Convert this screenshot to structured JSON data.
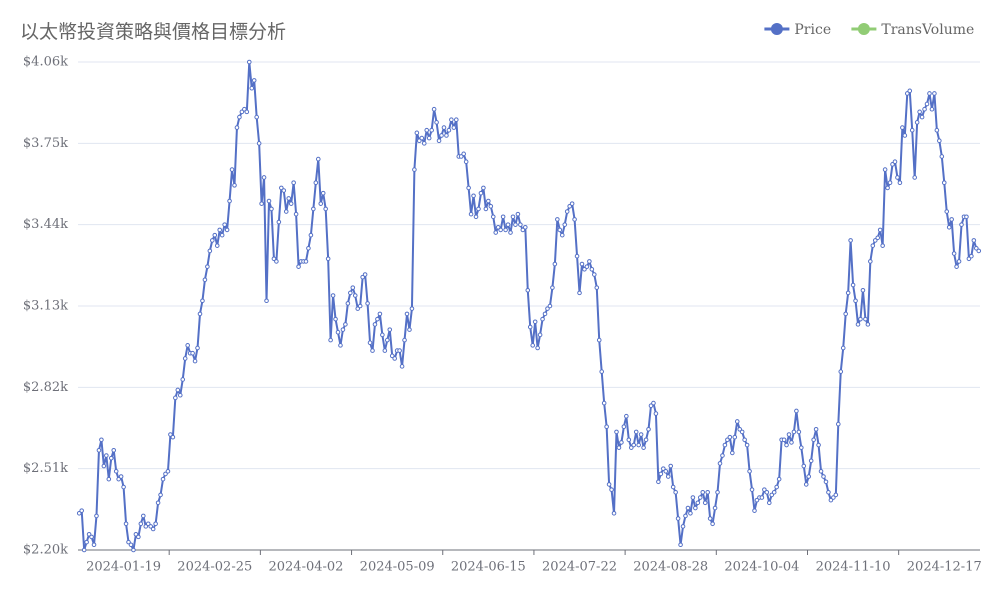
{
  "chart_data": {
    "type": "line",
    "title": "以太幣投資策略與價格目標分析",
    "legend_position": "top-right",
    "grid": true,
    "ylim": [
      2200,
      4060
    ],
    "yticks": [
      {
        "value": 2200,
        "label": "$2.20k"
      },
      {
        "value": 2510,
        "label": "$2.51k"
      },
      {
        "value": 2820,
        "label": "$2.82k"
      },
      {
        "value": 3130,
        "label": "$3.13k"
      },
      {
        "value": 3440,
        "label": "$3.44k"
      },
      {
        "value": 3750,
        "label": "$3.75k"
      },
      {
        "value": 4060,
        "label": "$4.06k"
      }
    ],
    "x": [
      "2024-01-01",
      "2024-01-02",
      "2024-01-03",
      "2024-01-04",
      "2024-01-05",
      "2024-01-06",
      "2024-01-07",
      "2024-01-08",
      "2024-01-09",
      "2024-01-10",
      "2024-01-11",
      "2024-01-12",
      "2024-01-13",
      "2024-01-14",
      "2024-01-15",
      "2024-01-16",
      "2024-01-17",
      "2024-01-18",
      "2024-01-19",
      "2024-01-20",
      "2024-01-21",
      "2024-01-22",
      "2024-01-23",
      "2024-01-24",
      "2024-01-25",
      "2024-01-26",
      "2024-01-27",
      "2024-01-28",
      "2024-01-29",
      "2024-01-30",
      "2024-01-31",
      "2024-02-01",
      "2024-02-02",
      "2024-02-03",
      "2024-02-04",
      "2024-02-05",
      "2024-02-06",
      "2024-02-07",
      "2024-02-08",
      "2024-02-09",
      "2024-02-10",
      "2024-02-11",
      "2024-02-12",
      "2024-02-13",
      "2024-02-14",
      "2024-02-15",
      "2024-02-16",
      "2024-02-17",
      "2024-02-18",
      "2024-02-19",
      "2024-02-20",
      "2024-02-21",
      "2024-02-22",
      "2024-02-23",
      "2024-02-24",
      "2024-02-25",
      "2024-02-26",
      "2024-02-27",
      "2024-02-28",
      "2024-02-29",
      "2024-03-01",
      "2024-03-02",
      "2024-03-03",
      "2024-03-04",
      "2024-03-05",
      "2024-03-06",
      "2024-03-07",
      "2024-03-08",
      "2024-03-09",
      "2024-03-10",
      "2024-03-11",
      "2024-03-12",
      "2024-03-13",
      "2024-03-14",
      "2024-03-15",
      "2024-03-16",
      "2024-03-17",
      "2024-03-18",
      "2024-03-19",
      "2024-03-20",
      "2024-03-21",
      "2024-03-22",
      "2024-03-23",
      "2024-03-24",
      "2024-03-25",
      "2024-03-26",
      "2024-03-27",
      "2024-03-28",
      "2024-03-29",
      "2024-03-30",
      "2024-03-31",
      "2024-04-01",
      "2024-04-02",
      "2024-04-03",
      "2024-04-04",
      "2024-04-05",
      "2024-04-06",
      "2024-04-07",
      "2024-04-08",
      "2024-04-09",
      "2024-04-10",
      "2024-04-11",
      "2024-04-12",
      "2024-04-13",
      "2024-04-14",
      "2024-04-15",
      "2024-04-16",
      "2024-04-17",
      "2024-04-18",
      "2024-04-19",
      "2024-04-20",
      "2024-04-21",
      "2024-04-22",
      "2024-04-23",
      "2024-04-24",
      "2024-04-25",
      "2024-04-26",
      "2024-04-27",
      "2024-04-28",
      "2024-04-29",
      "2024-04-30",
      "2024-05-01",
      "2024-05-02",
      "2024-05-03",
      "2024-05-04",
      "2024-05-05",
      "2024-05-06",
      "2024-05-07",
      "2024-05-08",
      "2024-05-09",
      "2024-05-10",
      "2024-05-11",
      "2024-05-12",
      "2024-05-13",
      "2024-05-14",
      "2024-05-15",
      "2024-05-16",
      "2024-05-17",
      "2024-05-18",
      "2024-05-19",
      "2024-05-20",
      "2024-05-21",
      "2024-05-22",
      "2024-05-23",
      "2024-05-24",
      "2024-05-25",
      "2024-05-26",
      "2024-05-27",
      "2024-05-28",
      "2024-05-29",
      "2024-05-30",
      "2024-05-31",
      "2024-06-01",
      "2024-06-02",
      "2024-06-03",
      "2024-06-04",
      "2024-06-05",
      "2024-06-06",
      "2024-06-07",
      "2024-06-08",
      "2024-06-09",
      "2024-06-10",
      "2024-06-11",
      "2024-06-12",
      "2024-06-13",
      "2024-06-14",
      "2024-06-15",
      "2024-06-16",
      "2024-06-17",
      "2024-06-18",
      "2024-06-19",
      "2024-06-20",
      "2024-06-21",
      "2024-06-22",
      "2024-06-23",
      "2024-06-24",
      "2024-06-25",
      "2024-06-26",
      "2024-06-27",
      "2024-06-28",
      "2024-06-29",
      "2024-06-30",
      "2024-07-01",
      "2024-07-02",
      "2024-07-03",
      "2024-07-04",
      "2024-07-05",
      "2024-07-06",
      "2024-07-07",
      "2024-07-08",
      "2024-07-09",
      "2024-07-10",
      "2024-07-11",
      "2024-07-12",
      "2024-07-13",
      "2024-07-14",
      "2024-07-15",
      "2024-07-16",
      "2024-07-17",
      "2024-07-18",
      "2024-07-19",
      "2024-07-20",
      "2024-07-21",
      "2024-07-22",
      "2024-07-23",
      "2024-07-24",
      "2024-07-25",
      "2024-07-26",
      "2024-07-27",
      "2024-07-28",
      "2024-07-29",
      "2024-07-30",
      "2024-07-31",
      "2024-08-01",
      "2024-08-02",
      "2024-08-03",
      "2024-08-04",
      "2024-08-05",
      "2024-08-06",
      "2024-08-07",
      "2024-08-08",
      "2024-08-09",
      "2024-08-10",
      "2024-08-11",
      "2024-08-12",
      "2024-08-13",
      "2024-08-14",
      "2024-08-15",
      "2024-08-16",
      "2024-08-17",
      "2024-08-18",
      "2024-08-19",
      "2024-08-20",
      "2024-08-21",
      "2024-08-22",
      "2024-08-23",
      "2024-08-24",
      "2024-08-25",
      "2024-08-26",
      "2024-08-27",
      "2024-08-28",
      "2024-08-29",
      "2024-08-30",
      "2024-08-31",
      "2024-09-01",
      "2024-09-02",
      "2024-09-03",
      "2024-09-04",
      "2024-09-05",
      "2024-09-06",
      "2024-09-07",
      "2024-09-08",
      "2024-09-09",
      "2024-09-10",
      "2024-09-11",
      "2024-09-12",
      "2024-09-13",
      "2024-09-14",
      "2024-09-15",
      "2024-09-16",
      "2024-09-17",
      "2024-09-18",
      "2024-09-19",
      "2024-09-20",
      "2024-09-21",
      "2024-09-22",
      "2024-09-23",
      "2024-09-24",
      "2024-09-25",
      "2024-09-26",
      "2024-09-27",
      "2024-09-28",
      "2024-09-29",
      "2024-09-30",
      "2024-10-01",
      "2024-10-02",
      "2024-10-03",
      "2024-10-04",
      "2024-10-05",
      "2024-10-06",
      "2024-10-07",
      "2024-10-08",
      "2024-10-09",
      "2024-10-10",
      "2024-10-11",
      "2024-10-12",
      "2024-10-13",
      "2024-10-14",
      "2024-10-15",
      "2024-10-16",
      "2024-10-17",
      "2024-10-18",
      "2024-10-19",
      "2024-10-20",
      "2024-10-21",
      "2024-10-22",
      "2024-10-23",
      "2024-10-24",
      "2024-10-25",
      "2024-10-26",
      "2024-10-27",
      "2024-10-28",
      "2024-10-29",
      "2024-10-30",
      "2024-10-31",
      "2024-11-01",
      "2024-11-02",
      "2024-11-03",
      "2024-11-04",
      "2024-11-05",
      "2024-11-06",
      "2024-11-07",
      "2024-11-08",
      "2024-11-09",
      "2024-11-10",
      "2024-11-11",
      "2024-11-12",
      "2024-11-13",
      "2024-11-14",
      "2024-11-15",
      "2024-11-16",
      "2024-11-17",
      "2024-11-18",
      "2024-11-19",
      "2024-11-20",
      "2024-11-21",
      "2024-11-22",
      "2024-11-23",
      "2024-11-24",
      "2024-11-25",
      "2024-11-26",
      "2024-11-27",
      "2024-11-28",
      "2024-11-29",
      "2024-11-30",
      "2024-12-01",
      "2024-12-02",
      "2024-12-03",
      "2024-12-04",
      "2024-12-05",
      "2024-12-06",
      "2024-12-07",
      "2024-12-08",
      "2024-12-09",
      "2024-12-10",
      "2024-12-11",
      "2024-12-12",
      "2024-12-13",
      "2024-12-14",
      "2024-12-15",
      "2024-12-16",
      "2024-12-17",
      "2024-12-18",
      "2024-12-19",
      "2024-12-20",
      "2024-12-21",
      "2024-12-22",
      "2024-12-23",
      "2024-12-24",
      "2024-12-25",
      "2024-12-26",
      "2024-12-27",
      "2024-12-28",
      "2024-12-29",
      "2024-12-30",
      "2024-12-31"
    ],
    "series": [
      {
        "name": "Price",
        "color": "#5470c6",
        "values": [
          2340,
          2350,
          2200,
          2230,
          2260,
          2250,
          2220,
          2330,
          2580,
          2620,
          2520,
          2560,
          2470,
          2550,
          2580,
          2500,
          2470,
          2480,
          2440,
          2300,
          2230,
          2220,
          2200,
          2260,
          2250,
          2300,
          2330,
          2290,
          2300,
          2290,
          2280,
          2300,
          2380,
          2410,
          2470,
          2490,
          2500,
          2640,
          2630,
          2780,
          2810,
          2790,
          2850,
          2930,
          2980,
          2950,
          2950,
          2920,
          2970,
          3100,
          3150,
          3230,
          3280,
          3340,
          3380,
          3400,
          3360,
          3420,
          3400,
          3440,
          3420,
          3530,
          3650,
          3590,
          3810,
          3850,
          3870,
          3880,
          3870,
          4060,
          3960,
          3990,
          3850,
          3750,
          3520,
          3620,
          3150,
          3530,
          3500,
          3310,
          3300,
          3450,
          3580,
          3570,
          3490,
          3540,
          3520,
          3600,
          3480,
          3280,
          3300,
          3300,
          3300,
          3350,
          3400,
          3500,
          3600,
          3690,
          3520,
          3560,
          3500,
          3310,
          3000,
          3170,
          3080,
          3030,
          2980,
          3040,
          3060,
          3140,
          3180,
          3200,
          3170,
          3120,
          3130,
          3240,
          3250,
          3140,
          2990,
          2960,
          3060,
          3080,
          3100,
          3020,
          2960,
          3000,
          3040,
          2940,
          2930,
          2960,
          2960,
          2900,
          3000,
          3100,
          3040,
          3120,
          3650,
          3790,
          3760,
          3770,
          3750,
          3800,
          3770,
          3800,
          3880,
          3830,
          3760,
          3780,
          3810,
          3780,
          3800,
          3840,
          3810,
          3840,
          3700,
          3700,
          3710,
          3680,
          3580,
          3480,
          3550,
          3470,
          3500,
          3560,
          3580,
          3500,
          3530,
          3510,
          3470,
          3410,
          3430,
          3420,
          3470,
          3420,
          3440,
          3410,
          3470,
          3440,
          3480,
          3440,
          3420,
          3430,
          3190,
          3050,
          2980,
          3070,
          2970,
          3020,
          3080,
          3100,
          3120,
          3130,
          3200,
          3290,
          3460,
          3420,
          3400,
          3440,
          3490,
          3510,
          3520,
          3460,
          3320,
          3180,
          3290,
          3270,
          3280,
          3300,
          3270,
          3250,
          3200,
          3000,
          2880,
          2760,
          2670,
          2450,
          2430,
          2340,
          2650,
          2590,
          2610,
          2670,
          2710,
          2620,
          2590,
          2600,
          2650,
          2600,
          2640,
          2590,
          2620,
          2660,
          2750,
          2760,
          2720,
          2460,
          2490,
          2510,
          2500,
          2480,
          2520,
          2440,
          2420,
          2320,
          2220,
          2290,
          2330,
          2360,
          2340,
          2400,
          2360,
          2380,
          2400,
          2420,
          2380,
          2420,
          2320,
          2300,
          2360,
          2420,
          2530,
          2560,
          2600,
          2620,
          2630,
          2570,
          2630,
          2690,
          2660,
          2650,
          2620,
          2600,
          2500,
          2430,
          2350,
          2390,
          2400,
          2400,
          2430,
          2420,
          2380,
          2410,
          2420,
          2440,
          2470,
          2620,
          2620,
          2600,
          2640,
          2610,
          2650,
          2730,
          2650,
          2590,
          2520,
          2450,
          2480,
          2540,
          2620,
          2660,
          2600,
          2500,
          2480,
          2460,
          2420,
          2390,
          2400,
          2410,
          2680,
          2880,
          2970,
          3100,
          3180,
          3380,
          3210,
          3150,
          3060,
          3080,
          3190,
          3080,
          3060,
          3300,
          3360,
          3380,
          3390,
          3420,
          3360,
          3650,
          3580,
          3600,
          3670,
          3680,
          3620,
          3600,
          3810,
          3780,
          3940,
          3950,
          3800,
          3620,
          3830,
          3870,
          3850,
          3880,
          3900,
          3940,
          3880,
          3940,
          3800,
          3760,
          3700,
          3600,
          3490,
          3430,
          3460,
          3330,
          3280,
          3300,
          3440,
          3470,
          3470,
          3310,
          3320,
          3380,
          3350,
          3340
        ]
      },
      {
        "name": "TransVolume",
        "color": "#91cc75"
      }
    ]
  }
}
